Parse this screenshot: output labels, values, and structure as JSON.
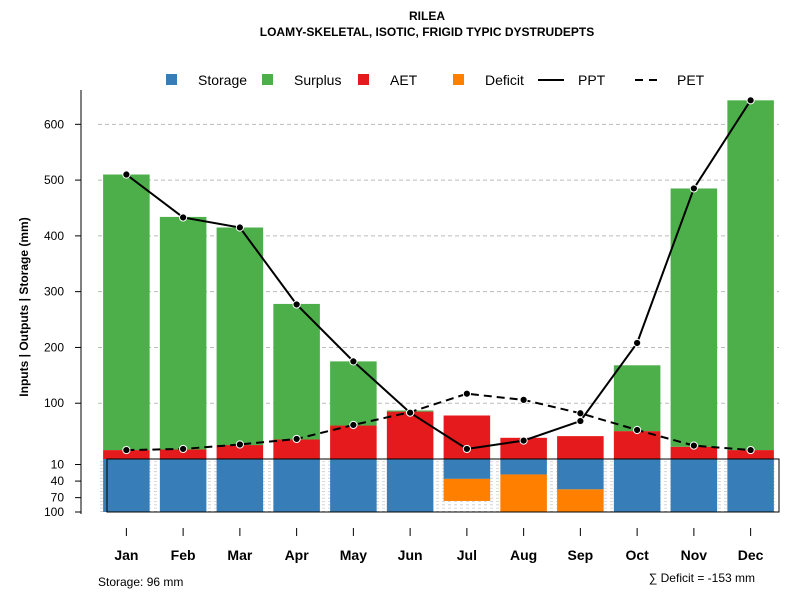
{
  "chart_data": {
    "type": "bar",
    "title": "RILEA",
    "subtitle": "LOAMY-SKELETAL, ISOTIC, FRIGID TYPIC DYSTRUDEPTS",
    "ylabel": "Inputs | Outputs | Storage    (mm)",
    "categories": [
      "Jan",
      "Feb",
      "Mar",
      "Apr",
      "May",
      "Jun",
      "Jul",
      "Aug",
      "Sep",
      "Oct",
      "Nov",
      "Dec"
    ],
    "upper_ylim": [
      0,
      640
    ],
    "upper_ticks": [
      100,
      200,
      300,
      400,
      500,
      600
    ],
    "lower_ylim": [
      0,
      96
    ],
    "lower_ticks": [
      10,
      40,
      70,
      100
    ],
    "series": [
      {
        "name": "AET",
        "color": "#e41a1c",
        "values": [
          16,
          17,
          25,
          35,
          60,
          85,
          78,
          38,
          41,
          50,
          22,
          16
        ]
      },
      {
        "name": "Surplus",
        "color": "#4daf4a",
        "values": [
          494,
          417,
          390,
          243,
          115,
          2,
          0,
          0,
          0,
          118,
          463,
          627
        ]
      },
      {
        "name": "Storage",
        "color": "#377eb8",
        "values": [
          96,
          96,
          96,
          96,
          96,
          96,
          36,
          28,
          55,
          96,
          96,
          96
        ]
      },
      {
        "name": "Deficit",
        "color": "#ff7f00",
        "values": [
          0,
          0,
          0,
          0,
          0,
          0,
          40,
          68,
          41,
          3,
          0,
          0
        ]
      },
      {
        "name": "PPT",
        "color": "#000000",
        "style": "solid",
        "values": [
          510,
          433,
          415,
          277,
          175,
          83,
          18,
          33,
          68,
          208,
          485,
          643
        ]
      },
      {
        "name": "PET",
        "color": "#000000",
        "style": "dashed",
        "values": [
          16,
          18,
          26,
          36,
          61,
          84,
          117,
          106,
          82,
          52,
          24,
          16
        ]
      }
    ],
    "legend": [
      "Storage",
      "Surplus",
      "AET",
      "Deficit",
      "PPT",
      "PET"
    ],
    "storage_note": "Storage: 96 mm",
    "deficit_note": "∑ Deficit = -153 mm"
  }
}
